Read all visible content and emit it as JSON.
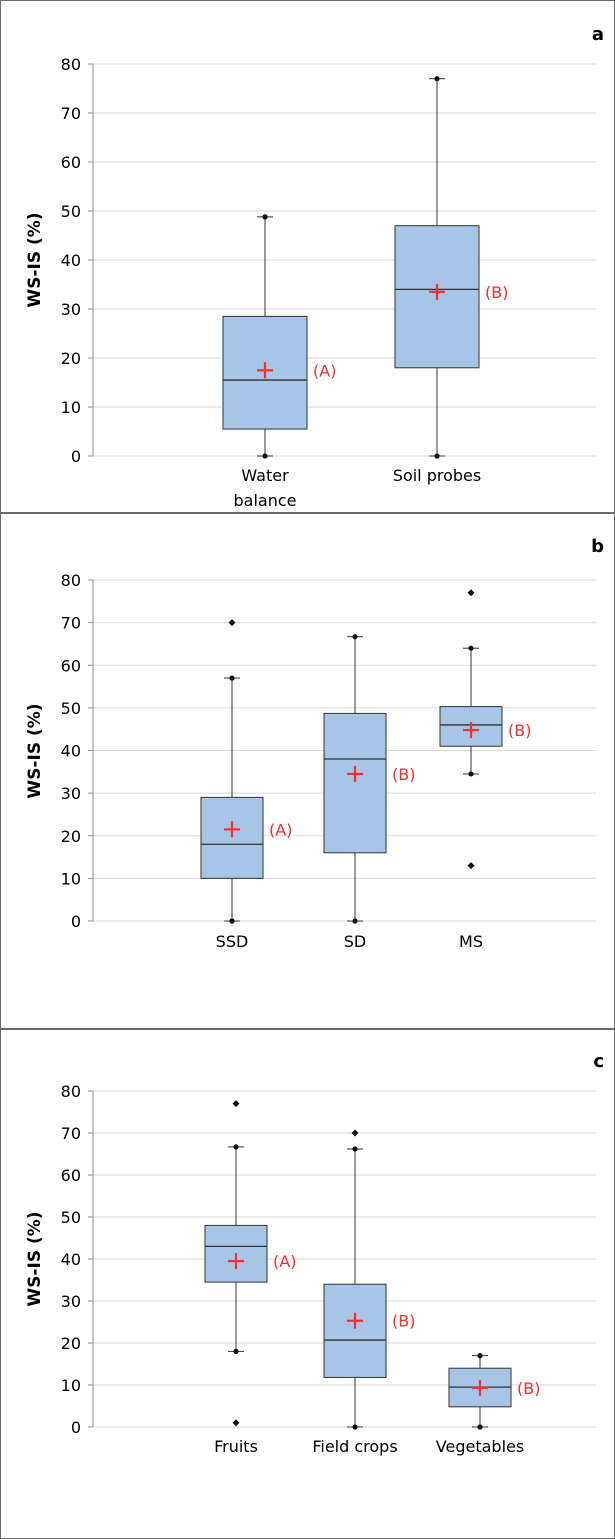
{
  "colors": {
    "box_fill": "#a7c5e6",
    "mean_marker": "#ff2a2a",
    "gridline": "#d9d9d9",
    "frame": "#6b6b6b"
  },
  "chart_data": [
    {
      "type": "boxplot",
      "panel_label": "a",
      "ylabel": "WS-IS (%)",
      "ylim": [
        0,
        80
      ],
      "yticks": [
        0,
        10,
        20,
        30,
        40,
        50,
        60,
        70,
        80
      ],
      "grid": true,
      "categories": [
        "Water balance",
        "Soil probes"
      ],
      "boxes": [
        {
          "category": "Water balance",
          "min": 0,
          "q1": 5.5,
          "median": 15.5,
          "q3": 28.5,
          "max": 48.8,
          "mean": 17.5,
          "outliers": [],
          "group": "(A)"
        },
        {
          "category": "Soil probes",
          "min": 0,
          "q1": 18,
          "median": 34,
          "q3": 47,
          "max": 77,
          "mean": 33.5,
          "outliers": [],
          "group": "(B)"
        }
      ]
    },
    {
      "type": "boxplot",
      "panel_label": "b",
      "ylabel": "WS-IS (%)",
      "ylim": [
        0,
        80
      ],
      "yticks": [
        0,
        10,
        20,
        30,
        40,
        50,
        60,
        70,
        80
      ],
      "grid": true,
      "categories": [
        "SSD",
        "SD",
        "MS"
      ],
      "boxes": [
        {
          "category": "SSD",
          "min": 0,
          "q1": 10,
          "median": 18,
          "q3": 29,
          "max": 57,
          "mean": 21.5,
          "outliers": [
            70
          ],
          "group": "(A)"
        },
        {
          "category": "SD",
          "min": 0,
          "q1": 16,
          "median": 38,
          "q3": 48.7,
          "max": 66.7,
          "mean": 34.5,
          "outliers": [],
          "group": "(B)"
        },
        {
          "category": "MS",
          "min": 34.5,
          "q1": 41,
          "median": 46,
          "q3": 50.3,
          "max": 64,
          "mean": 44.8,
          "outliers": [
            77,
            13
          ],
          "group": "(B)"
        }
      ]
    },
    {
      "type": "boxplot",
      "panel_label": "c",
      "ylabel": "WS-IS (%)",
      "ylim": [
        0,
        80
      ],
      "yticks": [
        0,
        10,
        20,
        30,
        40,
        50,
        60,
        70,
        80
      ],
      "grid": true,
      "categories": [
        "Fruits",
        "Field crops",
        "Vegetables"
      ],
      "boxes": [
        {
          "category": "Fruits",
          "min": 18,
          "q1": 34.5,
          "median": 43,
          "q3": 48,
          "max": 66.7,
          "mean": 39.5,
          "outliers": [
            77,
            1
          ],
          "group": "(A)"
        },
        {
          "category": "Field crops",
          "min": 0,
          "q1": 11.8,
          "median": 20.7,
          "q3": 34,
          "max": 66.2,
          "mean": 25.3,
          "outliers": [
            70
          ],
          "group": "(B)"
        },
        {
          "category": "Vegetables",
          "min": 0,
          "q1": 4.8,
          "median": 9.5,
          "q3": 14,
          "max": 17,
          "mean": 9.3,
          "outliers": [],
          "group": "(B)"
        }
      ]
    }
  ]
}
